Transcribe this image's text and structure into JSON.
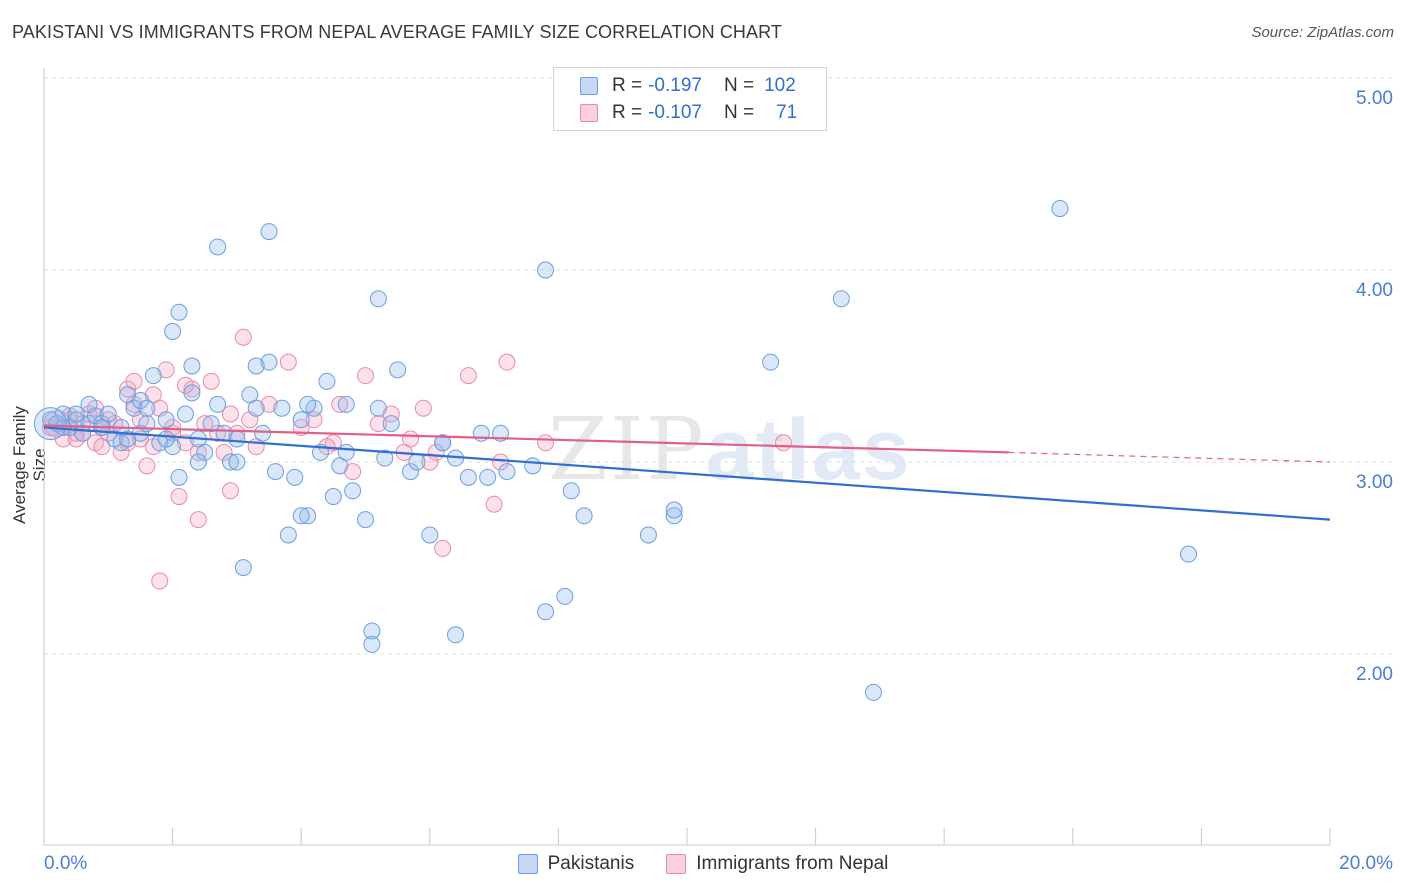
{
  "title": "PAKISTANI VS IMMIGRANTS FROM NEPAL AVERAGE FAMILY SIZE CORRELATION CHART",
  "source": "Source: ZipAtlas.com",
  "watermark_a": "ZIP",
  "watermark_b": "atlas",
  "colors": {
    "blue": "#6a9fe0",
    "blue_fill": "rgba(150,185,235,0.35)",
    "blue_line": "#2f6fd0",
    "pink": "#e88aab",
    "pink_fill": "rgba(245,170,195,0.35)",
    "pink_line": "#e0608a",
    "tick": "#4a7fd0"
  },
  "legend": {
    "rows": [
      {
        "r_label": "R =",
        "r_value": "-0.197",
        "n_label": "N =",
        "n_value": "102"
      },
      {
        "r_label": "R =",
        "r_value": "-0.107",
        "n_label": "N =",
        "n_value": "71"
      }
    ]
  },
  "bottom_legend": [
    "Pakistanis",
    "Immigrants from Nepal"
  ],
  "chart_data": {
    "type": "scatter",
    "title": "PAKISTANI VS IMMIGRANTS FROM NEPAL AVERAGE FAMILY SIZE CORRELATION CHART",
    "xlabel": "",
    "ylabel": "Average Family Size",
    "xlim": [
      0,
      20
    ],
    "ylim": [
      1.0,
      5.1
    ],
    "x_tick_labels": [
      "0.0%",
      "20.0%"
    ],
    "y_ticks": [
      2.0,
      3.0,
      4.0,
      5.0
    ],
    "y_tick_labels": [
      "2.00",
      "3.00",
      "4.00",
      "5.00"
    ],
    "grid": true,
    "series": [
      {
        "name": "Pakistanis",
        "trend": {
          "x": [
            0,
            20
          ],
          "y": [
            3.18,
            2.7
          ]
        },
        "points": [
          [
            0.1,
            3.22
          ],
          [
            0.2,
            3.2
          ],
          [
            0.3,
            3.25
          ],
          [
            0.4,
            3.18
          ],
          [
            0.5,
            3.22
          ],
          [
            0.6,
            3.15
          ],
          [
            0.7,
            3.2
          ],
          [
            0.8,
            3.24
          ],
          [
            0.9,
            3.2
          ],
          [
            1.0,
            3.25
          ],
          [
            1.1,
            3.12
          ],
          [
            1.2,
            3.1
          ],
          [
            1.3,
            3.35
          ],
          [
            1.4,
            3.28
          ],
          [
            1.5,
            3.15
          ],
          [
            1.6,
            3.2
          ],
          [
            1.7,
            3.45
          ],
          [
            1.8,
            3.1
          ],
          [
            1.9,
            3.22
          ],
          [
            2.0,
            3.08
          ],
          [
            2.1,
            2.92
          ],
          [
            2.2,
            3.25
          ],
          [
            2.3,
            3.5
          ],
          [
            2.4,
            3.12
          ],
          [
            2.5,
            3.05
          ],
          [
            2.6,
            3.2
          ],
          [
            2.7,
            3.3
          ],
          [
            2.8,
            3.15
          ],
          [
            2.9,
            3.0
          ],
          [
            3.0,
            3.12
          ],
          [
            3.1,
            2.45
          ],
          [
            3.2,
            3.35
          ],
          [
            3.3,
            3.28
          ],
          [
            3.4,
            3.15
          ],
          [
            3.5,
            3.52
          ],
          [
            3.6,
            2.95
          ],
          [
            3.7,
            3.28
          ],
          [
            3.8,
            2.62
          ],
          [
            3.9,
            2.92
          ],
          [
            4.0,
            3.22
          ],
          [
            4.1,
            2.72
          ],
          [
            4.2,
            3.28
          ],
          [
            4.3,
            3.05
          ],
          [
            4.4,
            3.42
          ],
          [
            4.5,
            2.82
          ],
          [
            4.6,
            2.98
          ],
          [
            4.7,
            3.3
          ],
          [
            4.8,
            2.85
          ],
          [
            5.0,
            2.7
          ],
          [
            5.1,
            2.12
          ],
          [
            5.2,
            3.28
          ],
          [
            5.4,
            3.2
          ],
          [
            5.5,
            3.48
          ],
          [
            5.7,
            2.95
          ],
          [
            5.8,
            3.0
          ],
          [
            6.0,
            2.62
          ],
          [
            6.2,
            3.1
          ],
          [
            6.4,
            2.1
          ],
          [
            6.6,
            2.92
          ],
          [
            6.8,
            3.15
          ],
          [
            6.9,
            2.92
          ],
          [
            7.2,
            2.95
          ],
          [
            7.8,
            2.22
          ],
          [
            8.1,
            2.3
          ],
          [
            8.4,
            2.72
          ],
          [
            9.4,
            2.62
          ],
          [
            9.8,
            2.72
          ],
          [
            12.9,
            1.8
          ],
          [
            15.8,
            4.32
          ],
          [
            17.8,
            2.52
          ],
          [
            2.7,
            4.12
          ],
          [
            3.5,
            4.2
          ],
          [
            5.2,
            3.85
          ],
          [
            7.8,
            4.0
          ],
          [
            12.4,
            3.85
          ],
          [
            2.1,
            3.78
          ],
          [
            2.0,
            3.68
          ],
          [
            6.2,
            3.1
          ],
          [
            3.3,
            3.5
          ],
          [
            4.1,
            3.3
          ],
          [
            0.3,
            3.18
          ],
          [
            0.5,
            3.25
          ],
          [
            0.7,
            3.3
          ],
          [
            1.2,
            3.18
          ],
          [
            1.5,
            3.32
          ],
          [
            1.9,
            3.12
          ],
          [
            2.4,
            3.0
          ],
          [
            3.0,
            3.0
          ],
          [
            4.7,
            3.05
          ],
          [
            5.1,
            2.05
          ],
          [
            8.2,
            2.85
          ],
          [
            9.8,
            2.75
          ],
          [
            11.3,
            3.52
          ],
          [
            7.1,
            3.15
          ],
          [
            7.6,
            2.98
          ],
          [
            6.4,
            3.02
          ],
          [
            2.3,
            3.36
          ],
          [
            1.6,
            3.28
          ],
          [
            0.9,
            3.18
          ],
          [
            1.3,
            3.12
          ],
          [
            5.3,
            3.02
          ],
          [
            4.0,
            2.72
          ]
        ]
      },
      {
        "name": "Immigrants from Nepal",
        "trend": {
          "x": [
            0,
            15
          ],
          "y": [
            3.19,
            3.05
          ]
        },
        "trend_dashed": {
          "x": [
            15,
            20
          ],
          "y": [
            3.05,
            3.0
          ]
        },
        "points": [
          [
            0.1,
            3.18
          ],
          [
            0.2,
            3.2
          ],
          [
            0.3,
            3.12
          ],
          [
            0.4,
            3.22
          ],
          [
            0.5,
            3.15
          ],
          [
            0.6,
            3.2
          ],
          [
            0.7,
            3.25
          ],
          [
            0.8,
            3.1
          ],
          [
            0.9,
            3.18
          ],
          [
            1.0,
            3.15
          ],
          [
            1.1,
            3.2
          ],
          [
            1.2,
            3.05
          ],
          [
            1.3,
            3.38
          ],
          [
            1.4,
            3.3
          ],
          [
            1.5,
            3.22
          ],
          [
            1.6,
            2.98
          ],
          [
            1.7,
            3.35
          ],
          [
            1.8,
            3.28
          ],
          [
            1.9,
            3.48
          ],
          [
            2.0,
            3.15
          ],
          [
            2.1,
            2.82
          ],
          [
            2.2,
            3.1
          ],
          [
            2.3,
            3.38
          ],
          [
            2.4,
            3.05
          ],
          [
            2.5,
            3.2
          ],
          [
            2.6,
            3.42
          ],
          [
            2.8,
            3.05
          ],
          [
            2.9,
            2.85
          ],
          [
            3.0,
            3.15
          ],
          [
            3.1,
            3.65
          ],
          [
            3.3,
            3.08
          ],
          [
            3.5,
            3.3
          ],
          [
            3.8,
            3.52
          ],
          [
            4.0,
            3.18
          ],
          [
            4.2,
            3.22
          ],
          [
            4.5,
            3.1
          ],
          [
            4.6,
            3.3
          ],
          [
            4.8,
            2.95
          ],
          [
            5.0,
            3.45
          ],
          [
            5.2,
            3.2
          ],
          [
            5.4,
            3.25
          ],
          [
            5.7,
            3.12
          ],
          [
            5.9,
            3.28
          ],
          [
            6.1,
            3.05
          ],
          [
            6.2,
            2.55
          ],
          [
            6.6,
            3.45
          ],
          [
            7.0,
            2.78
          ],
          [
            7.2,
            3.52
          ],
          [
            7.8,
            3.1
          ],
          [
            11.5,
            3.1
          ],
          [
            1.8,
            2.38
          ],
          [
            2.4,
            2.7
          ],
          [
            0.5,
            3.12
          ],
          [
            0.9,
            3.08
          ],
          [
            1.3,
            3.1
          ],
          [
            1.7,
            3.08
          ],
          [
            2.0,
            3.18
          ],
          [
            2.7,
            3.15
          ],
          [
            3.2,
            3.22
          ],
          [
            4.4,
            3.08
          ],
          [
            5.6,
            3.05
          ],
          [
            6.0,
            3.0
          ],
          [
            7.1,
            3.0
          ],
          [
            1.4,
            3.42
          ],
          [
            1.0,
            3.22
          ],
          [
            0.6,
            3.15
          ],
          [
            2.2,
            3.4
          ],
          [
            1.5,
            3.12
          ],
          [
            0.8,
            3.28
          ],
          [
            0.4,
            3.24
          ],
          [
            2.9,
            3.25
          ]
        ]
      }
    ]
  }
}
